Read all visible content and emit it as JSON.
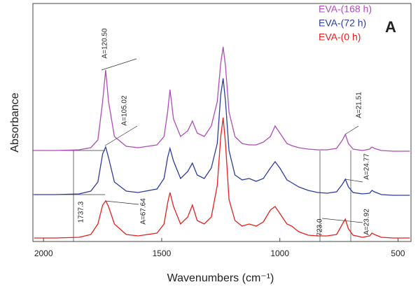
{
  "chart_data": {
    "type": "line",
    "xlabel": "Wavenumbers (cm⁻¹)",
    "ylabel": "Absorbance",
    "panel_label": "A",
    "xlim": [
      2045,
      445
    ],
    "ylim": [
      0,
      340
    ],
    "xticks": [
      2000,
      1500,
      1000,
      500
    ],
    "legend": "upper right",
    "x": [
      2040,
      1950,
      1850,
      1800,
      1770,
      1750,
      1737,
      1725,
      1700,
      1650,
      1600,
      1520,
      1490,
      1475,
      1465,
      1450,
      1420,
      1390,
      1370,
      1350,
      1320,
      1290,
      1265,
      1250,
      1240,
      1230,
      1215,
      1190,
      1160,
      1130,
      1100,
      1070,
      1040,
      1020,
      1000,
      970,
      950,
      920,
      880,
      840,
      800,
      760,
      735,
      723,
      710,
      690,
      650,
      620,
      610,
      600,
      570,
      520,
      450
    ],
    "series": [
      {
        "name": "EVA-(168 h)",
        "color": "#b04cb8",
        "values": [
          130,
          130,
          131,
          134,
          145,
          200,
          245,
          200,
          150,
          136,
          134,
          138,
          150,
          185,
          217,
          175,
          150,
          158,
          172,
          155,
          150,
          165,
          200,
          255,
          278,
          250,
          185,
          150,
          140,
          138,
          138,
          142,
          150,
          165,
          155,
          140,
          137,
          134,
          132,
          131,
          131,
          133,
          145,
          153,
          140,
          132,
          130,
          132,
          135,
          133,
          130,
          129,
          129
        ]
      },
      {
        "name": "EVA-(72 h)",
        "color": "#2e3c9c",
        "values": [
          67,
          67,
          68,
          72,
          85,
          125,
          135,
          120,
          85,
          72,
          70,
          75,
          90,
          120,
          133,
          115,
          90,
          100,
          112,
          95,
          90,
          105,
          140,
          210,
          233,
          200,
          130,
          95,
          88,
          90,
          86,
          90,
          105,
          114,
          105,
          88,
          84,
          78,
          73,
          70,
          69,
          71,
          82,
          89,
          78,
          70,
          68,
          69,
          73,
          71,
          67,
          66,
          66
        ]
      },
      {
        "name": "EVA-(0 h)",
        "color": "#e5201c",
        "values": [
          5,
          5,
          6,
          10,
          25,
          52,
          58,
          50,
          25,
          10,
          8,
          12,
          25,
          55,
          70,
          50,
          25,
          35,
          52,
          30,
          25,
          35,
          80,
          150,
          177,
          140,
          60,
          30,
          22,
          25,
          22,
          28,
          45,
          50,
          40,
          25,
          22,
          14,
          9,
          8,
          8,
          10,
          25,
          32,
          18,
          9,
          6,
          8,
          12,
          10,
          6,
          5,
          5
        ]
      }
    ],
    "annotations": [
      "A=120.50",
      "A=105.02",
      "1737.3",
      "A=67.64",
      "A=21.51",
      "A=24.77",
      "A=23.92",
      "723.0"
    ]
  }
}
